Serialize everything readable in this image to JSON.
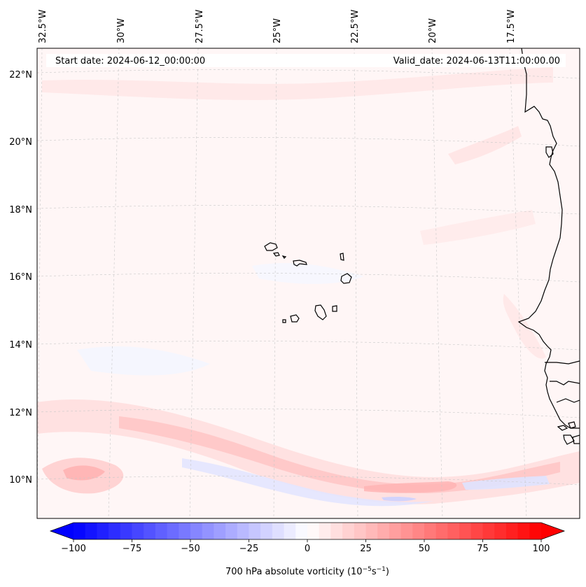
{
  "header": {
    "start_date": "Start date: 2024-06-12_00:00:00",
    "valid_date": "Valid_date: 2024-06-13T11:00:00.00"
  },
  "map": {
    "longitude_labels": [
      "32.5°W",
      "30°W",
      "27.5°W",
      "25°W",
      "22.5°W",
      "20°W",
      "17.5°W"
    ],
    "latitude_labels": [
      "22°N",
      "20°N",
      "18°N",
      "16°N",
      "14°N",
      "12°N",
      "10°N"
    ],
    "extent": {
      "lon_min": -32.6,
      "lon_max": -15.8,
      "lat_min": 8.9,
      "lat_max": 22.7
    },
    "gridlines": true,
    "background_color": "#fff6f6",
    "land_outline_color": "#000000"
  },
  "colorbar": {
    "label_html": "700 hPa absolute vorticity (10<tspan baseline-shift=\"super\" font-size=\"9\">−5</tspan>s<tspan baseline-shift=\"super\" font-size=\"9\">−1</tspan>)",
    "label_text": "700 hPa absolute vorticity (10−5s−1)",
    "tick_labels": [
      "−100",
      "−75",
      "−50",
      "−25",
      "0",
      "25",
      "50",
      "75",
      "100"
    ],
    "min": -100,
    "max": 100,
    "step": 5,
    "extend": "both",
    "cmap": "bwr",
    "colors": {
      "low": "#0000ff",
      "mid": "#ffffff",
      "high": "#ff0000"
    }
  }
}
